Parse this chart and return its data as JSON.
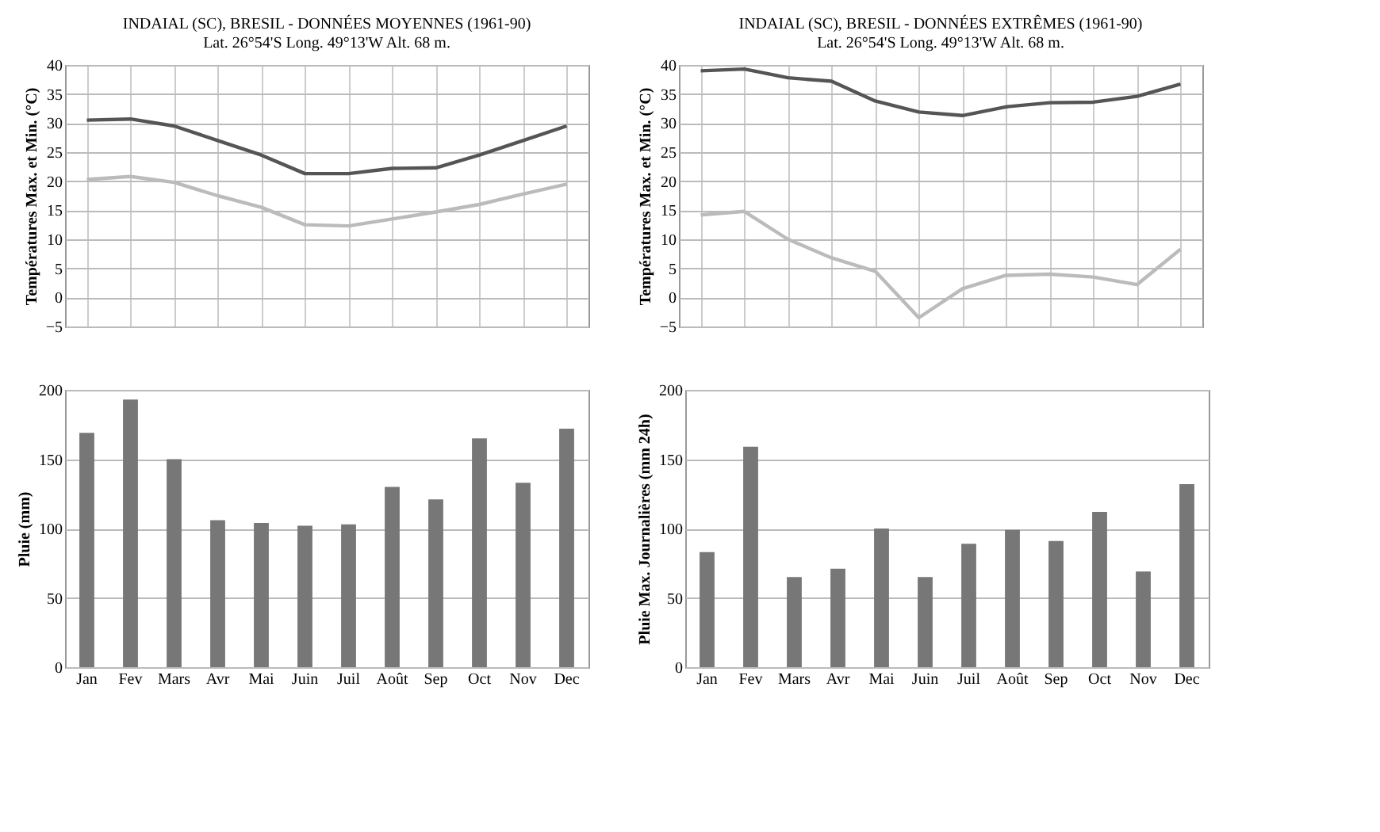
{
  "chart_data": [
    {
      "type": "line",
      "title": "INDAIAL (SC), BRESIL - DONNÉES MOYENNES (1961-90)",
      "subtitle": "Lat. 26°54'S  Long. 49°13'W  Alt. 68 m.",
      "ylabel": "Températures Max. et Min. (°C)",
      "categories": [
        null,
        null,
        null,
        null,
        null,
        null,
        null,
        null,
        null,
        null,
        null,
        null
      ],
      "series": [
        {
          "color": "#555555",
          "values": [
            30.5,
            30.7,
            29.5,
            27,
            24.5,
            21.3,
            21.3,
            22.2,
            22.3,
            24.5,
            27,
            29.5
          ]
        },
        {
          "color": "#bbbbbb",
          "values": [
            20.3,
            20.8,
            19.8,
            17.5,
            15.5,
            12.5,
            12.3,
            13.5,
            14.7,
            16,
            17.8,
            19.5
          ]
        }
      ],
      "ylim": [
        -5,
        40
      ],
      "yticks": [
        -5,
        0,
        5,
        10,
        15,
        20,
        25,
        30,
        35,
        40
      ],
      "grid": true,
      "tick_labels": "y"
    },
    {
      "type": "line",
      "title": "INDAIAL (SC), BRESIL - DONNÉES EXTRÊMES (1961-90)",
      "subtitle": "Lat. 26°54'S  Long. 49°13'W  Alt. 68 m.",
      "ylabel": "Températures Max. et Min. (°C)",
      "categories": [
        null,
        null,
        null,
        null,
        null,
        null,
        null,
        null,
        null,
        null,
        null,
        null
      ],
      "series": [
        {
          "color": "#555555",
          "values": [
            39,
            39.3,
            37.8,
            37.2,
            33.8,
            31.9,
            31.3,
            32.8,
            33.5,
            33.6,
            34.6,
            36.7
          ]
        },
        {
          "color": "#bbbbbb",
          "values": [
            14.2,
            14.8,
            10,
            6.8,
            4.5,
            -3.5,
            1.5,
            3.8,
            4,
            3.5,
            2.2,
            8.3
          ]
        }
      ],
      "ylim": [
        -5,
        40
      ],
      "yticks": [
        -5,
        0,
        5,
        10,
        15,
        20,
        25,
        30,
        35,
        40
      ],
      "grid": true,
      "tick_labels": "y"
    },
    {
      "type": "bar",
      "ylabel": "Pluie (mm)",
      "categories": [
        "Jan",
        "Fev",
        "Mars",
        "Avr",
        "Mai",
        "Juin",
        "Juil",
        "Août",
        "Sep",
        "Oct",
        "Nov",
        "Dec"
      ],
      "values": [
        169,
        193,
        150,
        106,
        104,
        102,
        103,
        130,
        121,
        165,
        133,
        172
      ],
      "color": "#777777",
      "ylim": [
        0,
        200
      ],
      "yticks": [
        0,
        50,
        100,
        150,
        200
      ],
      "grid": "y"
    },
    {
      "type": "bar",
      "ylabel": "Pluie Max. Journalières (mm 24h)",
      "categories": [
        "Jan",
        "Fev",
        "Mars",
        "Avr",
        "Mai",
        "Juin",
        "Juil",
        "Août",
        "Sep",
        "Oct",
        "Nov",
        "Dec"
      ],
      "values": [
        83,
        159,
        65,
        71,
        100,
        65,
        89,
        99,
        91,
        112,
        69,
        132
      ],
      "color": "#777777",
      "ylim": [
        0,
        200
      ],
      "yticks": [
        0,
        50,
        100,
        150,
        200
      ],
      "grid": "y"
    }
  ]
}
